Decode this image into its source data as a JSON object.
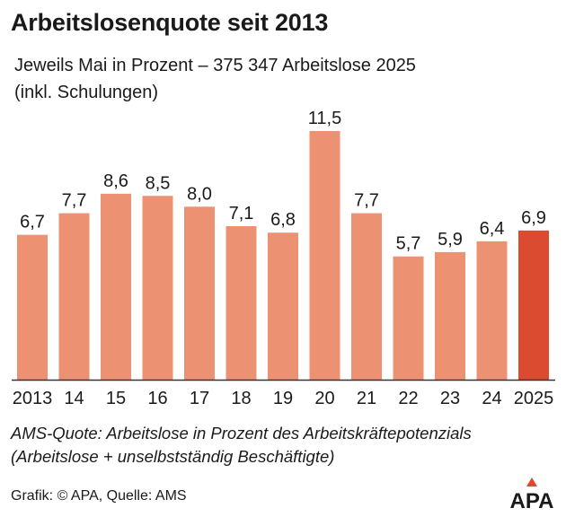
{
  "header": {
    "title": "Arbeitslosenquote seit 2013",
    "subtitle_line1": "Jeweils Mai in Prozent – 375 347 Arbeitslose 2025",
    "subtitle_line2": "(inkl. Schulungen)"
  },
  "footer": {
    "note_line1": "AMS-Quote: Arbeitslose in Prozent des Arbeitskräftepotenzials",
    "note_line2": "(Arbeitslose + unselbstständig Beschäftigte)",
    "source": "Grafik: © APA, Quelle: AMS",
    "logo": "APA"
  },
  "colors": {
    "bar": "#EC9272",
    "highlight": "#DB4B30",
    "axis": "#333333",
    "text": "#1a1a1a"
  },
  "chart_data": {
    "type": "bar",
    "categories": [
      "2013",
      "14",
      "15",
      "16",
      "17",
      "18",
      "19",
      "20",
      "21",
      "22",
      "23",
      "24",
      "2025"
    ],
    "values": [
      6.7,
      7.7,
      8.6,
      8.5,
      8.0,
      7.1,
      6.8,
      11.5,
      7.7,
      5.7,
      5.9,
      6.4,
      6.9
    ],
    "value_labels": [
      "6,7",
      "7,7",
      "8,6",
      "8,5",
      "8,0",
      "7,1",
      "6,8",
      "11,5",
      "7,7",
      "5,7",
      "5,9",
      "6,4",
      "6,9"
    ],
    "highlight_index": 12,
    "ylim": [
      0,
      11.5
    ],
    "grid": false
  }
}
